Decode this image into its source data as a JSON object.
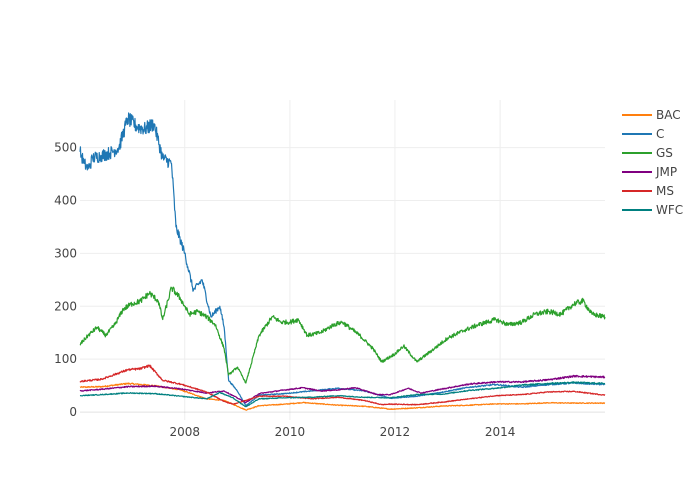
{
  "chart_data": {
    "type": "line",
    "title": "",
    "xlabel": "",
    "ylabel": "",
    "xlim": [
      "2006-01-03",
      "2015-12-31"
    ],
    "ylim": [
      -15,
      590
    ],
    "x_ticks": [
      {
        "value": "2008-01-01",
        "label": "2008"
      },
      {
        "value": "2010-01-01",
        "label": "2010"
      },
      {
        "value": "2012-01-01",
        "label": "2012"
      },
      {
        "value": "2014-01-01",
        "label": "2014"
      }
    ],
    "y_ticks": [
      {
        "value": 0,
        "label": "0"
      },
      {
        "value": 100,
        "label": "100"
      },
      {
        "value": 200,
        "label": "200"
      },
      {
        "value": 300,
        "label": "300"
      },
      {
        "value": 400,
        "label": "400"
      },
      {
        "value": 500,
        "label": "500"
      }
    ],
    "grid": true,
    "legend_position": "top-right",
    "series": [
      {
        "name": "BAC",
        "color": "#ff7f0e",
        "points": [
          [
            "2006-01-03",
            47
          ],
          [
            "2006-06-01",
            48
          ],
          [
            "2006-12-01",
            54
          ],
          [
            "2007-06-01",
            50
          ],
          [
            "2007-12-01",
            42
          ],
          [
            "2008-06-01",
            25
          ],
          [
            "2008-10-01",
            22
          ],
          [
            "2009-03-01",
            4
          ],
          [
            "2009-06-01",
            12
          ],
          [
            "2009-12-01",
            15
          ],
          [
            "2010-04-01",
            18
          ],
          [
            "2010-12-01",
            13
          ],
          [
            "2011-06-01",
            11
          ],
          [
            "2011-12-01",
            5.5
          ],
          [
            "2012-06-01",
            8
          ],
          [
            "2012-12-01",
            11.5
          ],
          [
            "2013-06-01",
            13
          ],
          [
            "2013-12-01",
            15.5
          ],
          [
            "2014-06-01",
            15.5
          ],
          [
            "2014-12-01",
            17.5
          ],
          [
            "2015-06-01",
            17
          ],
          [
            "2015-12-31",
            17
          ]
        ]
      },
      {
        "name": "C",
        "color": "#1f77b4",
        "points": [
          [
            "2006-01-03",
            492
          ],
          [
            "2006-02-01",
            470
          ],
          [
            "2006-03-01",
            460
          ],
          [
            "2006-04-01",
            480
          ],
          [
            "2006-06-01",
            485
          ],
          [
            "2006-08-01",
            490
          ],
          [
            "2006-10-01",
            500
          ],
          [
            "2006-12-01",
            555
          ],
          [
            "2007-02-01",
            540
          ],
          [
            "2007-04-01",
            535
          ],
          [
            "2007-06-01",
            545
          ],
          [
            "2007-08-01",
            480
          ],
          [
            "2007-10-01",
            470
          ],
          [
            "2007-11-01",
            350
          ],
          [
            "2008-01-01",
            300
          ],
          [
            "2008-03-01",
            230
          ],
          [
            "2008-05-01",
            250
          ],
          [
            "2008-07-01",
            180
          ],
          [
            "2008-09-01",
            200
          ],
          [
            "2008-10-01",
            160
          ],
          [
            "2008-11-01",
            60
          ],
          [
            "2009-01-01",
            40
          ],
          [
            "2009-03-01",
            12
          ],
          [
            "2009-06-01",
            32
          ],
          [
            "2009-12-01",
            35
          ],
          [
            "2010-06-01",
            40
          ],
          [
            "2010-12-01",
            45
          ],
          [
            "2011-06-01",
            40
          ],
          [
            "2011-12-01",
            26
          ],
          [
            "2012-06-01",
            30
          ],
          [
            "2012-12-01",
            38
          ],
          [
            "2013-06-01",
            47
          ],
          [
            "2013-12-01",
            52
          ],
          [
            "2014-06-01",
            47
          ],
          [
            "2014-12-01",
            52
          ],
          [
            "2015-06-01",
            55
          ],
          [
            "2015-12-31",
            52
          ]
        ]
      },
      {
        "name": "GS",
        "color": "#2ca02c",
        "points": [
          [
            "2006-01-03",
            128
          ],
          [
            "2006-03-01",
            145
          ],
          [
            "2006-05-01",
            160
          ],
          [
            "2006-07-01",
            145
          ],
          [
            "2006-09-01",
            165
          ],
          [
            "2006-11-01",
            195
          ],
          [
            "2007-01-01",
            205
          ],
          [
            "2007-03-01",
            210
          ],
          [
            "2007-05-01",
            225
          ],
          [
            "2007-07-01",
            210
          ],
          [
            "2007-08-01",
            175
          ],
          [
            "2007-10-01",
            235
          ],
          [
            "2007-12-01",
            215
          ],
          [
            "2008-02-01",
            185
          ],
          [
            "2008-04-01",
            190
          ],
          [
            "2008-06-01",
            180
          ],
          [
            "2008-08-01",
            165
          ],
          [
            "2008-10-01",
            120
          ],
          [
            "2008-11-01",
            70
          ],
          [
            "2009-01-01",
            85
          ],
          [
            "2009-03-01",
            55
          ],
          [
            "2009-06-01",
            145
          ],
          [
            "2009-09-01",
            180
          ],
          [
            "2009-11-01",
            170
          ],
          [
            "2010-01-01",
            170
          ],
          [
            "2010-03-01",
            175
          ],
          [
            "2010-05-01",
            145
          ],
          [
            "2010-08-01",
            150
          ],
          [
            "2010-11-01",
            165
          ],
          [
            "2011-01-01",
            170
          ],
          [
            "2011-05-01",
            145
          ],
          [
            "2011-08-01",
            120
          ],
          [
            "2011-10-01",
            95
          ],
          [
            "2012-01-01",
            110
          ],
          [
            "2012-03-01",
            125
          ],
          [
            "2012-06-01",
            95
          ],
          [
            "2012-10-01",
            120
          ],
          [
            "2013-01-01",
            140
          ],
          [
            "2013-05-01",
            155
          ],
          [
            "2013-08-01",
            165
          ],
          [
            "2013-12-01",
            175
          ],
          [
            "2014-03-01",
            165
          ],
          [
            "2014-06-01",
            170
          ],
          [
            "2014-09-01",
            185
          ],
          [
            "2014-12-01",
            190
          ],
          [
            "2015-03-01",
            185
          ],
          [
            "2015-06-01",
            205
          ],
          [
            "2015-08-01",
            210
          ],
          [
            "2015-10-01",
            185
          ],
          [
            "2015-12-31",
            180
          ]
        ]
      },
      {
        "name": "JMP",
        "color": "#800080",
        "points": [
          [
            "2006-01-03",
            40
          ],
          [
            "2006-06-01",
            43
          ],
          [
            "2006-12-01",
            48
          ],
          [
            "2007-06-01",
            49
          ],
          [
            "2007-12-01",
            44
          ],
          [
            "2008-06-01",
            36
          ],
          [
            "2008-10-01",
            40
          ],
          [
            "2009-03-01",
            18
          ],
          [
            "2009-06-01",
            35
          ],
          [
            "2009-12-01",
            42
          ],
          [
            "2010-04-01",
            46
          ],
          [
            "2010-08-01",
            40
          ],
          [
            "2010-12-01",
            42
          ],
          [
            "2011-04-01",
            46
          ],
          [
            "2011-09-01",
            33
          ],
          [
            "2011-12-01",
            33
          ],
          [
            "2012-04-01",
            45
          ],
          [
            "2012-07-01",
            36
          ],
          [
            "2012-12-01",
            44
          ],
          [
            "2013-06-01",
            53
          ],
          [
            "2013-12-01",
            57
          ],
          [
            "2014-06-01",
            57
          ],
          [
            "2014-12-01",
            61
          ],
          [
            "2015-06-01",
            68
          ],
          [
            "2015-12-31",
            66
          ]
        ]
      },
      {
        "name": "MS",
        "color": "#d62728",
        "points": [
          [
            "2006-01-03",
            58
          ],
          [
            "2006-06-01",
            62
          ],
          [
            "2006-12-01",
            80
          ],
          [
            "2007-03-01",
            82
          ],
          [
            "2007-05-01",
            88
          ],
          [
            "2007-08-01",
            60
          ],
          [
            "2007-12-01",
            53
          ],
          [
            "2008-06-01",
            38
          ],
          [
            "2008-10-01",
            20
          ],
          [
            "2008-12-01",
            15
          ],
          [
            "2009-03-01",
            22
          ],
          [
            "2009-06-01",
            30
          ],
          [
            "2009-12-01",
            30
          ],
          [
            "2010-06-01",
            25
          ],
          [
            "2010-12-01",
            28
          ],
          [
            "2011-06-01",
            22
          ],
          [
            "2011-10-01",
            14
          ],
          [
            "2011-12-01",
            15
          ],
          [
            "2012-06-01",
            14
          ],
          [
            "2012-12-01",
            19
          ],
          [
            "2013-06-01",
            25
          ],
          [
            "2013-12-01",
            31
          ],
          [
            "2014-06-01",
            33
          ],
          [
            "2014-12-01",
            38
          ],
          [
            "2015-06-01",
            39
          ],
          [
            "2015-12-31",
            32
          ]
        ]
      },
      {
        "name": "WFC",
        "color": "#008080",
        "points": [
          [
            "2006-01-03",
            31
          ],
          [
            "2006-06-01",
            33
          ],
          [
            "2006-12-01",
            36
          ],
          [
            "2007-06-01",
            35
          ],
          [
            "2007-12-01",
            30
          ],
          [
            "2008-06-01",
            25
          ],
          [
            "2008-09-01",
            37
          ],
          [
            "2008-12-01",
            27
          ],
          [
            "2009-03-01",
            10
          ],
          [
            "2009-06-01",
            25
          ],
          [
            "2009-12-01",
            27
          ],
          [
            "2010-06-01",
            28
          ],
          [
            "2010-12-01",
            31
          ],
          [
            "2011-06-01",
            28
          ],
          [
            "2011-12-01",
            27
          ],
          [
            "2012-06-01",
            33
          ],
          [
            "2012-12-01",
            34
          ],
          [
            "2013-06-01",
            41
          ],
          [
            "2013-12-01",
            45
          ],
          [
            "2014-06-01",
            51
          ],
          [
            "2014-12-01",
            54
          ],
          [
            "2015-06-01",
            56
          ],
          [
            "2015-12-31",
            54
          ]
        ]
      }
    ]
  }
}
